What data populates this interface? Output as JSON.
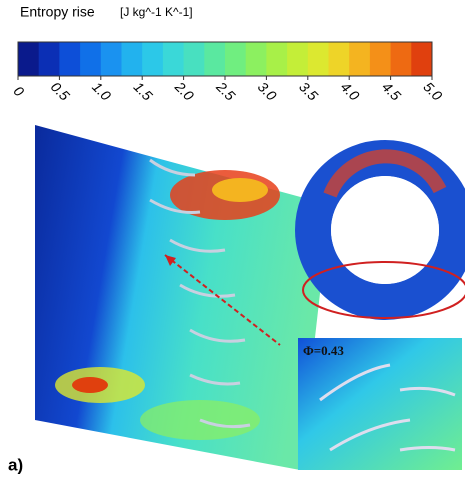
{
  "colorbar": {
    "title": "Entropy rise",
    "unit": "[J kg^-1 K^-1]",
    "lim": [
      0,
      5
    ],
    "ticks": [
      0,
      0.5,
      {
        "value": 1,
        "label": "1.0"
      },
      1.5,
      {
        "value": 2,
        "label": "2.0"
      },
      2.5,
      {
        "value": 3,
        "label": "3.0"
      },
      3.5,
      {
        "value": 4,
        "label": "4.0"
      },
      4.5,
      {
        "value": 5,
        "label": "5.0"
      }
    ],
    "colors": [
      "#0a1a8c",
      "#0b2fb5",
      "#0d4fd8",
      "#1070e8",
      "#1a92f0",
      "#22b2ee",
      "#2cc8e8",
      "#3ad8d8",
      "#48e0c0",
      "#5ae8a0",
      "#70ee80",
      "#8cf060",
      "#a8f048",
      "#c4ee38",
      "#dce830",
      "#eed428",
      "#f4b420",
      "#f49018",
      "#ee6a12",
      "#e0400e"
    ]
  },
  "inset_label": "Φ=0.43",
  "panel_label": "a)"
}
